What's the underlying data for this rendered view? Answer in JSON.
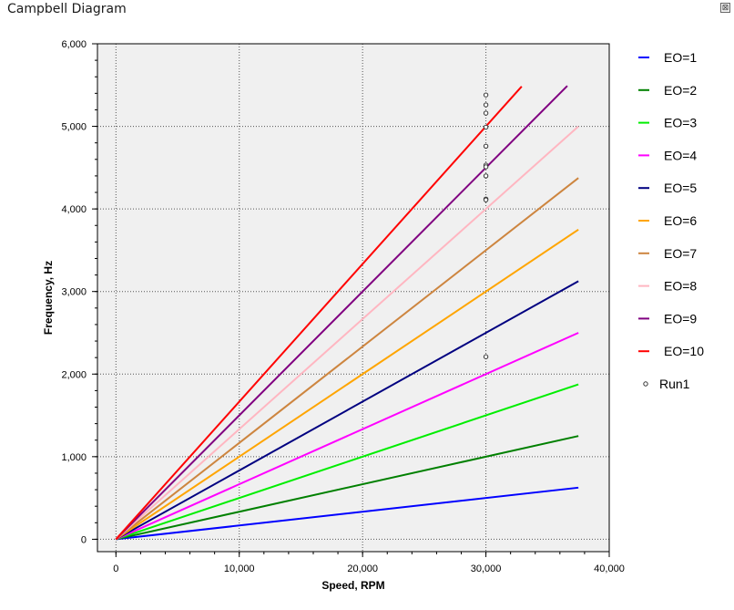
{
  "window": {
    "title": "Campbell Diagram",
    "close_glyph": "⊠"
  },
  "chart_data": {
    "type": "line",
    "xlabel": "Speed, RPM",
    "ylabel": "Frequency, Hz",
    "xlim": [
      -1500,
      40000
    ],
    "ylim": [
      -150,
      6000
    ],
    "xticks": [
      0,
      10000,
      20000,
      30000,
      40000
    ],
    "xtick_labels": [
      "0",
      "10,000",
      "20,000",
      "30,000",
      "40,000"
    ],
    "yticks": [
      0,
      1000,
      2000,
      3000,
      4000,
      5000,
      6000
    ],
    "ytick_labels": [
      "0",
      "1,000",
      "2,000",
      "3,000",
      "4,000",
      "5,000",
      "6,000"
    ],
    "grid": true,
    "legend_position": "right",
    "series": [
      {
        "name": "EO=1",
        "color": "#0000ff",
        "x": [
          0,
          37500
        ],
        "y": [
          0,
          625
        ]
      },
      {
        "name": "EO=2",
        "color": "#008000",
        "x": [
          0,
          37500
        ],
        "y": [
          0,
          1250
        ]
      },
      {
        "name": "EO=3",
        "color": "#00ee00",
        "x": [
          0,
          37500
        ],
        "y": [
          0,
          1875
        ]
      },
      {
        "name": "EO=4",
        "color": "#ff00ff",
        "x": [
          0,
          37500
        ],
        "y": [
          0,
          2500
        ]
      },
      {
        "name": "EO=5",
        "color": "#000080",
        "x": [
          0,
          37500
        ],
        "y": [
          0,
          3125
        ]
      },
      {
        "name": "EO=6",
        "color": "#ffa500",
        "x": [
          0,
          37500
        ],
        "y": [
          0,
          3750
        ]
      },
      {
        "name": "EO=7",
        "color": "#cd853f",
        "x": [
          0,
          37500
        ],
        "y": [
          0,
          4375
        ]
      },
      {
        "name": "EO=8",
        "color": "#ffb6c1",
        "x": [
          0,
          37500
        ],
        "y": [
          0,
          5000
        ]
      },
      {
        "name": "EO=9",
        "color": "#800080",
        "x": [
          0,
          36600
        ],
        "y": [
          0,
          5490
        ]
      },
      {
        "name": "EO=10",
        "color": "#ff0000",
        "x": [
          0,
          32900
        ],
        "y": [
          0,
          5483
        ]
      }
    ],
    "scatter": {
      "name": "Run1",
      "color": "#333333",
      "x": [
        30000,
        30000,
        30000,
        30000,
        30000,
        30000,
        30000,
        30000,
        30000,
        30000,
        30000
      ],
      "y": [
        5380,
        5260,
        5160,
        4990,
        4760,
        4530,
        4510,
        4400,
        4120,
        4110,
        2210
      ]
    }
  }
}
